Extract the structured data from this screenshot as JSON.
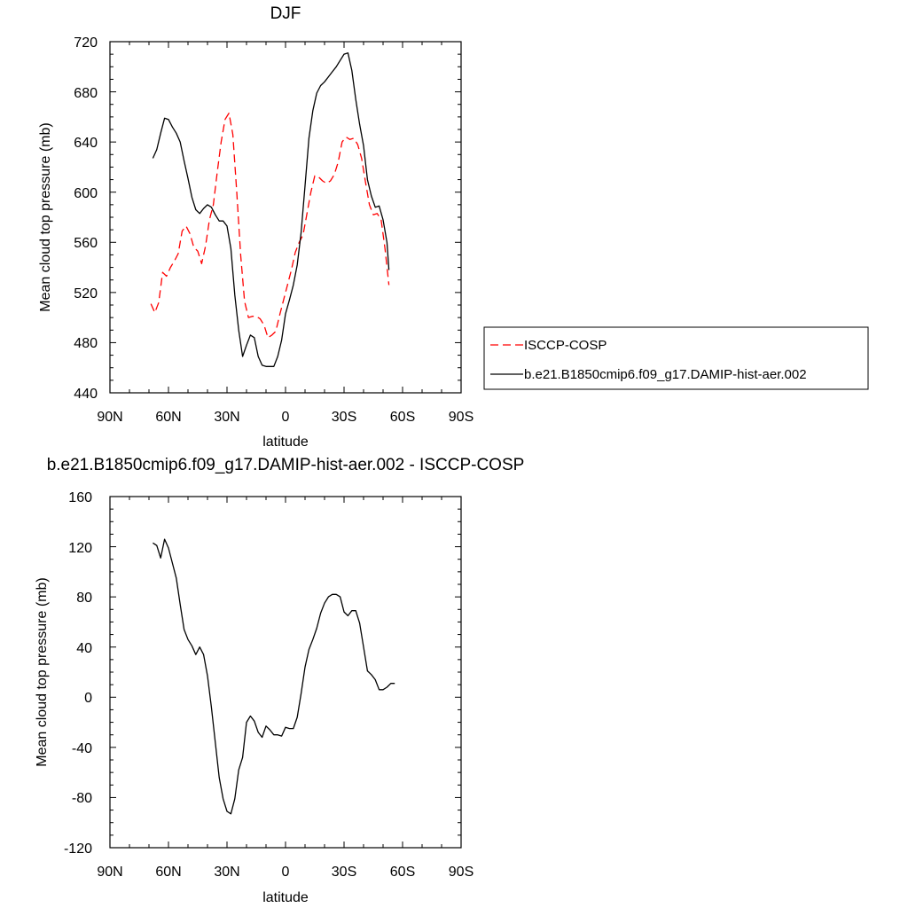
{
  "chart_data": [
    {
      "type": "line",
      "title": "DJF",
      "xlabel": "latitude",
      "ylabel": "Mean cloud top pressure (mb)",
      "xlim": [
        90,
        -90
      ],
      "ylim": [
        440,
        720
      ],
      "xticks": [
        90,
        60,
        30,
        0,
        -30,
        -60,
        -90
      ],
      "xtick_labels": [
        "90N",
        "60N",
        "30N",
        "0",
        "30S",
        "60S",
        "90S"
      ],
      "yticks": [
        440,
        480,
        520,
        560,
        600,
        640,
        680,
        720
      ],
      "ytick_labels": [
        "440",
        "480",
        "520",
        "560",
        "600",
        "640",
        "680",
        "720"
      ],
      "grid": false,
      "legend_position": "right",
      "series": [
        {
          "name": "ISCCP-COSP",
          "color": "#ff0000",
          "dash": "dashed",
          "points": [
            [
              69,
              511
            ],
            [
              67,
              504
            ],
            [
              65,
              512
            ],
            [
              63,
              536
            ],
            [
              61,
              533
            ],
            [
              59,
              540
            ],
            [
              57,
              545
            ],
            [
              55,
              551
            ],
            [
              53,
              569
            ],
            [
              51,
              573
            ],
            [
              49,
              567
            ],
            [
              47,
              556
            ],
            [
              45,
              553
            ],
            [
              43,
              543
            ],
            [
              41,
              557
            ],
            [
              39,
              578
            ],
            [
              37,
              590
            ],
            [
              35,
              616
            ],
            [
              33,
              640
            ],
            [
              31,
              658
            ],
            [
              29,
              663
            ],
            [
              27,
              646
            ],
            [
              25,
              600
            ],
            [
              23,
              550
            ],
            [
              21,
              513
            ],
            [
              19,
              500
            ],
            [
              17,
              501
            ],
            [
              15,
              501
            ],
            [
              13,
              499
            ],
            [
              11,
              494
            ],
            [
              9,
              484
            ],
            [
              7,
              486
            ],
            [
              5,
              489
            ],
            [
              3,
              502
            ],
            [
              1,
              514
            ],
            [
              -1,
              526
            ],
            [
              -3,
              538
            ],
            [
              -5,
              552
            ],
            [
              -7,
              560
            ],
            [
              -9,
              566
            ],
            [
              -11,
              583
            ],
            [
              -13,
              600
            ],
            [
              -15,
              613
            ],
            [
              -17,
              612
            ],
            [
              -19,
              609
            ],
            [
              -21,
              607
            ],
            [
              -23,
              609
            ],
            [
              -25,
              614
            ],
            [
              -27,
              624
            ],
            [
              -29,
              640
            ],
            [
              -31,
              644
            ],
            [
              -33,
              642
            ],
            [
              -35,
              643
            ],
            [
              -37,
              638
            ],
            [
              -39,
              627
            ],
            [
              -41,
              608
            ],
            [
              -43,
              590
            ],
            [
              -45,
              582
            ],
            [
              -47,
              583
            ],
            [
              -49,
              578
            ],
            [
              -51,
              555
            ],
            [
              -53,
              526
            ]
          ]
        },
        {
          "name": "b.e21.B1850cmip6.f09_g17.DAMIP-hist-aer.002",
          "color": "#000000",
          "dash": "solid",
          "points": [
            [
              68,
              627
            ],
            [
              66,
              634
            ],
            [
              64,
              647
            ],
            [
              62,
              659
            ],
            [
              60,
              658
            ],
            [
              58,
              652
            ],
            [
              56,
              647
            ],
            [
              54,
              640
            ],
            [
              52,
              625
            ],
            [
              50,
              611
            ],
            [
              48,
              596
            ],
            [
              46,
              586
            ],
            [
              44,
              583
            ],
            [
              42,
              587
            ],
            [
              40,
              590
            ],
            [
              38,
              588
            ],
            [
              36,
              582
            ],
            [
              34,
              577
            ],
            [
              32,
              577
            ],
            [
              30,
              573
            ],
            [
              28,
              555
            ],
            [
              26,
              518
            ],
            [
              24,
              490
            ],
            [
              22,
              469
            ],
            [
              20,
              478
            ],
            [
              18,
              486
            ],
            [
              16,
              484
            ],
            [
              14,
              469
            ],
            [
              12,
              462
            ],
            [
              10,
              461
            ],
            [
              8,
              461
            ],
            [
              6,
              461
            ],
            [
              4,
              469
            ],
            [
              2,
              482
            ],
            [
              0,
              503
            ],
            [
              -2,
              514
            ],
            [
              -4,
              526
            ],
            [
              -6,
              542
            ],
            [
              -8,
              568
            ],
            [
              -10,
              605
            ],
            [
              -12,
              643
            ],
            [
              -14,
              665
            ],
            [
              -16,
              679
            ],
            [
              -18,
              685
            ],
            [
              -20,
              688
            ],
            [
              -22,
              692
            ],
            [
              -24,
              696
            ],
            [
              -26,
              700
            ],
            [
              -28,
              705
            ],
            [
              -30,
              710
            ],
            [
              -32,
              711
            ],
            [
              -34,
              697
            ],
            [
              -36,
              674
            ],
            [
              -38,
              654
            ],
            [
              -40,
              637
            ],
            [
              -42,
              610
            ],
            [
              -44,
              597
            ],
            [
              -46,
              588
            ],
            [
              -48,
              589
            ],
            [
              -50,
              578
            ],
            [
              -52,
              560
            ],
            [
              -53,
              538
            ]
          ]
        }
      ],
      "legend": [
        {
          "label": "ISCCP-COSP",
          "color": "#ff0000",
          "dash": "dashed"
        },
        {
          "label": "b.e21.B1850cmip6.f09_g17.DAMIP-hist-aer.002",
          "color": "#000000",
          "dash": "solid"
        }
      ]
    },
    {
      "type": "line",
      "title": "b.e21.B1850cmip6.f09_g17.DAMIP-hist-aer.002 - ISCCP-COSP",
      "xlabel": "latitude",
      "ylabel": "Mean cloud top pressure (mb)",
      "xlim": [
        90,
        -90
      ],
      "ylim": [
        -120,
        160
      ],
      "xticks": [
        90,
        60,
        30,
        0,
        -30,
        -60,
        -90
      ],
      "xtick_labels": [
        "90N",
        "60N",
        "30N",
        "0",
        "30S",
        "60S",
        "90S"
      ],
      "yticks": [
        -120,
        -80,
        -40,
        0,
        40,
        80,
        120,
        160
      ],
      "ytick_labels": [
        "-120",
        "-80",
        "-40",
        "0",
        "40",
        "80",
        "120",
        "160"
      ],
      "grid": false,
      "series": [
        {
          "color": "#000000",
          "dash": "solid",
          "points": [
            [
              68,
              123
            ],
            [
              66,
              121
            ],
            [
              64,
              111
            ],
            [
              62,
              126
            ],
            [
              60,
              119
            ],
            [
              58,
              107
            ],
            [
              56,
              95
            ],
            [
              54,
              74
            ],
            [
              52,
              54
            ],
            [
              50,
              46
            ],
            [
              48,
              41
            ],
            [
              46,
              34
            ],
            [
              44,
              40
            ],
            [
              42,
              34
            ],
            [
              40,
              17
            ],
            [
              38,
              -8
            ],
            [
              36,
              -36
            ],
            [
              34,
              -64
            ],
            [
              32,
              -81
            ],
            [
              30,
              -91
            ],
            [
              28,
              -93
            ],
            [
              26,
              -81
            ],
            [
              24,
              -58
            ],
            [
              22,
              -48
            ],
            [
              20,
              -20
            ],
            [
              18,
              -15
            ],
            [
              16,
              -19
            ],
            [
              14,
              -28
            ],
            [
              12,
              -32
            ],
            [
              10,
              -23
            ],
            [
              8,
              -26
            ],
            [
              6,
              -30
            ],
            [
              4,
              -30
            ],
            [
              2,
              -31
            ],
            [
              0,
              -24
            ],
            [
              -2,
              -25
            ],
            [
              -4,
              -25
            ],
            [
              -6,
              -16
            ],
            [
              -8,
              3
            ],
            [
              -10,
              24
            ],
            [
              -12,
              38
            ],
            [
              -14,
              46
            ],
            [
              -16,
              55
            ],
            [
              -18,
              67
            ],
            [
              -20,
              75
            ],
            [
              -22,
              80
            ],
            [
              -24,
              82
            ],
            [
              -26,
              82
            ],
            [
              -28,
              80
            ],
            [
              -30,
              68
            ],
            [
              -32,
              65
            ],
            [
              -34,
              69
            ],
            [
              -36,
              69
            ],
            [
              -38,
              59
            ],
            [
              -40,
              40
            ],
            [
              -42,
              21
            ],
            [
              -44,
              18
            ],
            [
              -46,
              14
            ],
            [
              -48,
              6
            ],
            [
              -50,
              6
            ],
            [
              -52,
              8
            ],
            [
              -54,
              11
            ],
            [
              -56,
              11
            ]
          ]
        }
      ]
    }
  ]
}
